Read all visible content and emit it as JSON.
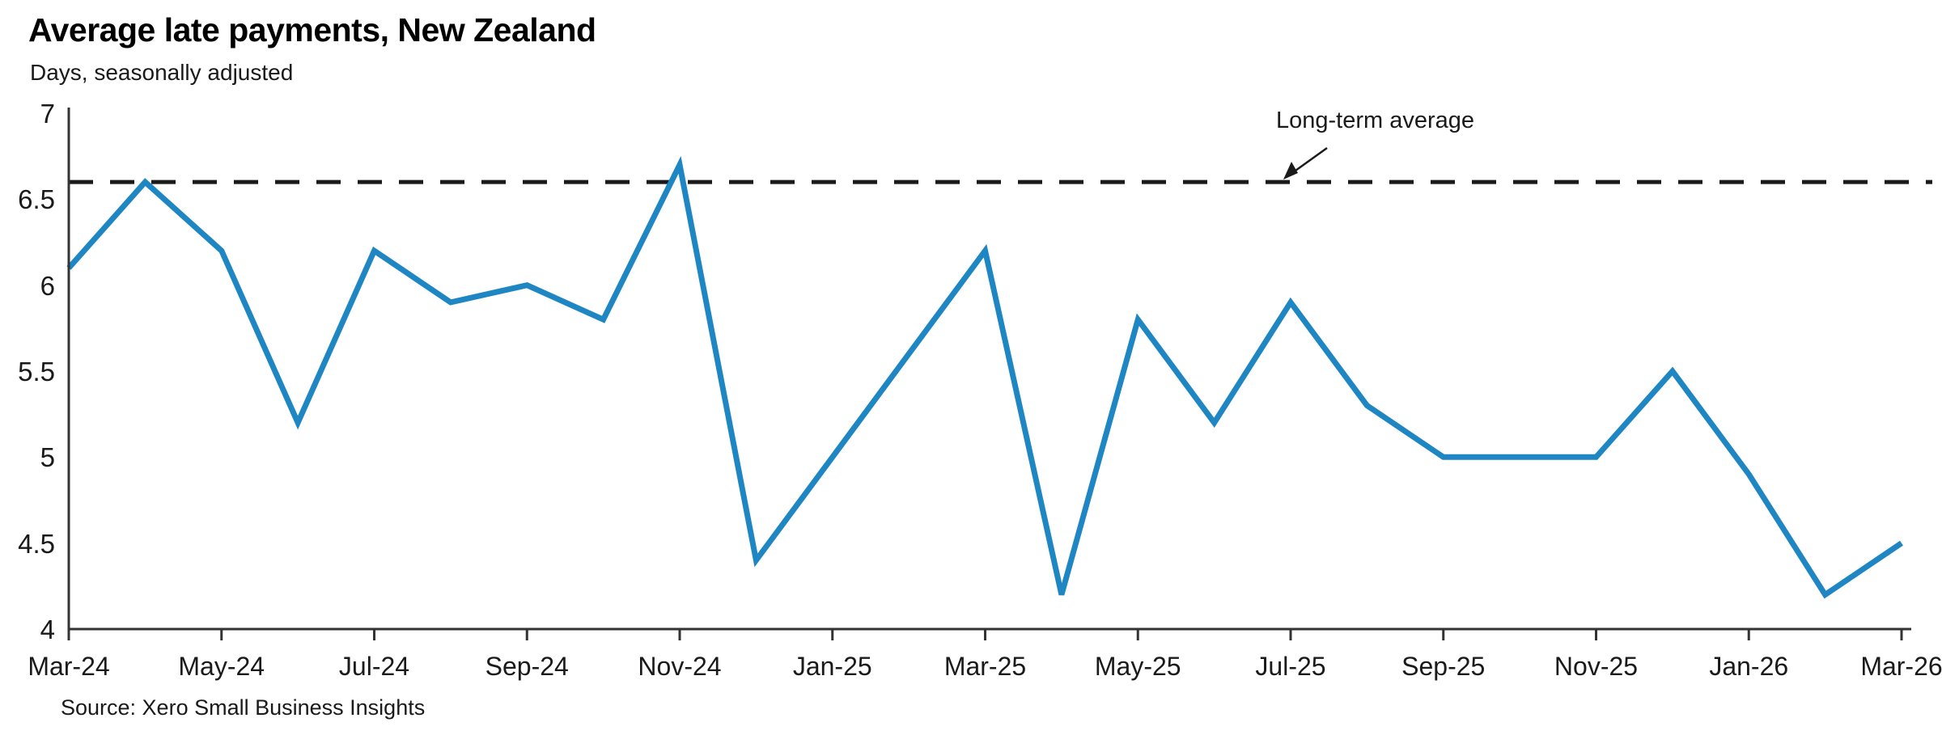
{
  "header": {
    "title": "Average late payments, New Zealand",
    "subtitle": "Days, seasonally adjusted"
  },
  "annotation": {
    "label": "Long-term average"
  },
  "footer": {
    "source": "Source: Xero Small Business Insights"
  },
  "colors": {
    "line": "#1E86C2",
    "reference_dashed": "#1a1a1a",
    "axis": "#333333",
    "text": "#1a1a1a"
  },
  "chart_data": {
    "type": "line",
    "title": "Average late payments, New Zealand",
    "subtitle": "Days, seasonally adjusted",
    "x": [
      "Mar-24",
      "Apr-24",
      "May-24",
      "Jun-24",
      "Jul-24",
      "Aug-24",
      "Sep-24",
      "Oct-24",
      "Nov-24",
      "Dec-24",
      "Jan-25",
      "Feb-25",
      "Mar-25",
      "Apr-25",
      "May-25",
      "Jun-25",
      "Jul-25",
      "Aug-25",
      "Sep-25",
      "Oct-25",
      "Nov-25",
      "Dec-25",
      "Jan-26",
      "Feb-26",
      "Mar-26"
    ],
    "series": [
      {
        "name": "Average late payments (days, seasonally adjusted)",
        "values": [
          6.1,
          6.6,
          6.2,
          5.2,
          6.2,
          5.9,
          6.0,
          5.8,
          6.7,
          4.4,
          5.0,
          5.6,
          6.2,
          4.2,
          5.8,
          5.2,
          5.9,
          5.3,
          5.0,
          5.0,
          5.0,
          5.5,
          4.9,
          4.2,
          4.5
        ]
      }
    ],
    "reference_line": {
      "label": "Long-term average",
      "value": 6.6,
      "style": "dashed"
    },
    "ylabel": "Days",
    "xlabel": "",
    "ylim": [
      4,
      7
    ],
    "yticks": [
      4,
      4.5,
      5,
      5.5,
      6,
      6.5,
      7
    ],
    "xtick_labels": [
      "Mar-24",
      "May-24",
      "Jul-24",
      "Sep-24",
      "Nov-24",
      "Jan-25",
      "Mar-25",
      "May-25",
      "Jul-25",
      "Sep-25",
      "Nov-25",
      "Jan-26",
      "Mar-26"
    ],
    "xtick_every_n_months": 2,
    "grid": false,
    "legend_position": "none",
    "source": "Source: Xero Small Business Insights"
  }
}
